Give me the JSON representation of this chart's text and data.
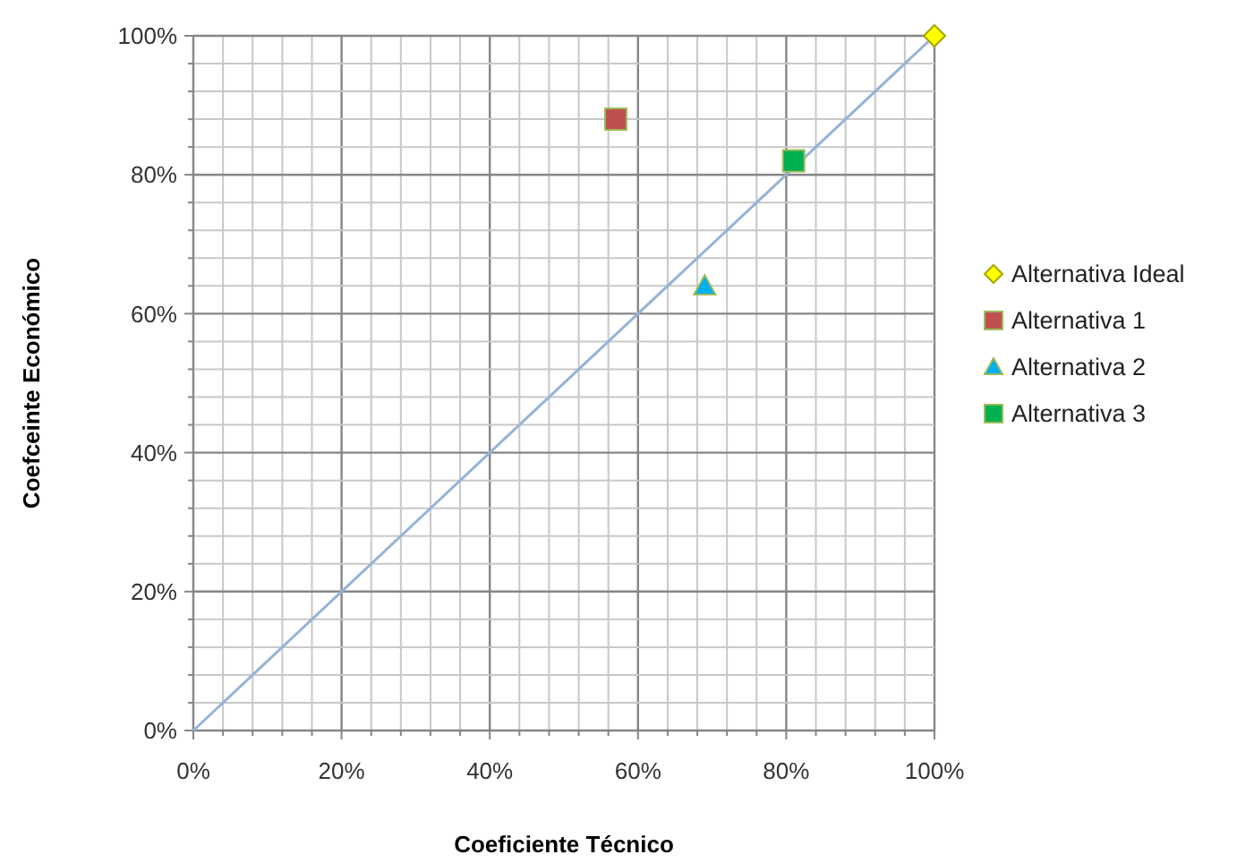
{
  "chart_data": {
    "type": "scatter",
    "xlabel": "Coeficiente Técnico",
    "ylabel": "Coefceinte Económico",
    "xlim": [
      0,
      100
    ],
    "ylim": [
      0,
      100
    ],
    "xticks": [
      {
        "value": 0,
        "label": "0%"
      },
      {
        "value": 4,
        "label": null
      },
      {
        "value": 8,
        "label": null
      },
      {
        "value": 12,
        "label": null
      },
      {
        "value": 16,
        "label": null
      },
      {
        "value": 20,
        "label": "20%"
      },
      {
        "value": 24,
        "label": null
      },
      {
        "value": 28,
        "label": null
      },
      {
        "value": 32,
        "label": null
      },
      {
        "value": 36,
        "label": null
      },
      {
        "value": 40,
        "label": "40%"
      },
      {
        "value": 44,
        "label": null
      },
      {
        "value": 48,
        "label": null
      },
      {
        "value": 52,
        "label": null
      },
      {
        "value": 56,
        "label": null
      },
      {
        "value": 60,
        "label": "60%"
      },
      {
        "value": 64,
        "label": null
      },
      {
        "value": 68,
        "label": null
      },
      {
        "value": 72,
        "label": null
      },
      {
        "value": 76,
        "label": null
      },
      {
        "value": 80,
        "label": "80%"
      },
      {
        "value": 84,
        "label": null
      },
      {
        "value": 88,
        "label": null
      },
      {
        "value": 92,
        "label": null
      },
      {
        "value": 96,
        "label": null
      },
      {
        "value": 100,
        "label": "100%"
      }
    ],
    "yticks": [
      {
        "value": 0,
        "label": "0%"
      },
      {
        "value": 4,
        "label": null
      },
      {
        "value": 8,
        "label": null
      },
      {
        "value": 12,
        "label": null
      },
      {
        "value": 16,
        "label": null
      },
      {
        "value": 20,
        "label": "20%"
      },
      {
        "value": 24,
        "label": null
      },
      {
        "value": 28,
        "label": null
      },
      {
        "value": 32,
        "label": null
      },
      {
        "value": 36,
        "label": null
      },
      {
        "value": 40,
        "label": "40%"
      },
      {
        "value": 44,
        "label": null
      },
      {
        "value": 48,
        "label": null
      },
      {
        "value": 52,
        "label": null
      },
      {
        "value": 56,
        "label": null
      },
      {
        "value": 60,
        "label": "60%"
      },
      {
        "value": 64,
        "label": null
      },
      {
        "value": 68,
        "label": null
      },
      {
        "value": 72,
        "label": null
      },
      {
        "value": 76,
        "label": null
      },
      {
        "value": 80,
        "label": "80%"
      },
      {
        "value": 84,
        "label": null
      },
      {
        "value": 88,
        "label": null
      },
      {
        "value": 92,
        "label": null
      },
      {
        "value": 96,
        "label": null
      },
      {
        "value": 100,
        "label": "100%"
      }
    ],
    "grid": true,
    "legend": "right",
    "series": [
      {
        "type": "line",
        "color": "#95b3d7",
        "x": [
          0,
          100
        ],
        "values": [
          0,
          100
        ],
        "marker": "none",
        "line_style": "solid"
      },
      {
        "name": "Alternativa Ideal",
        "color": "#ffff00",
        "x": [
          100
        ],
        "values": [
          100
        ],
        "marker": "diamond"
      },
      {
        "name": "Alternativa 1",
        "color": "#c0504d",
        "x": [
          57
        ],
        "values": [
          88
        ],
        "marker": "square"
      },
      {
        "name": "Alternativa 2",
        "color": "#00b0f0",
        "x": [
          69
        ],
        "values": [
          64
        ],
        "marker": "triangle"
      },
      {
        "name": "Alternativa 3",
        "color": "#00b050",
        "x": [
          81
        ],
        "values": [
          82
        ],
        "marker": "square"
      }
    ]
  }
}
